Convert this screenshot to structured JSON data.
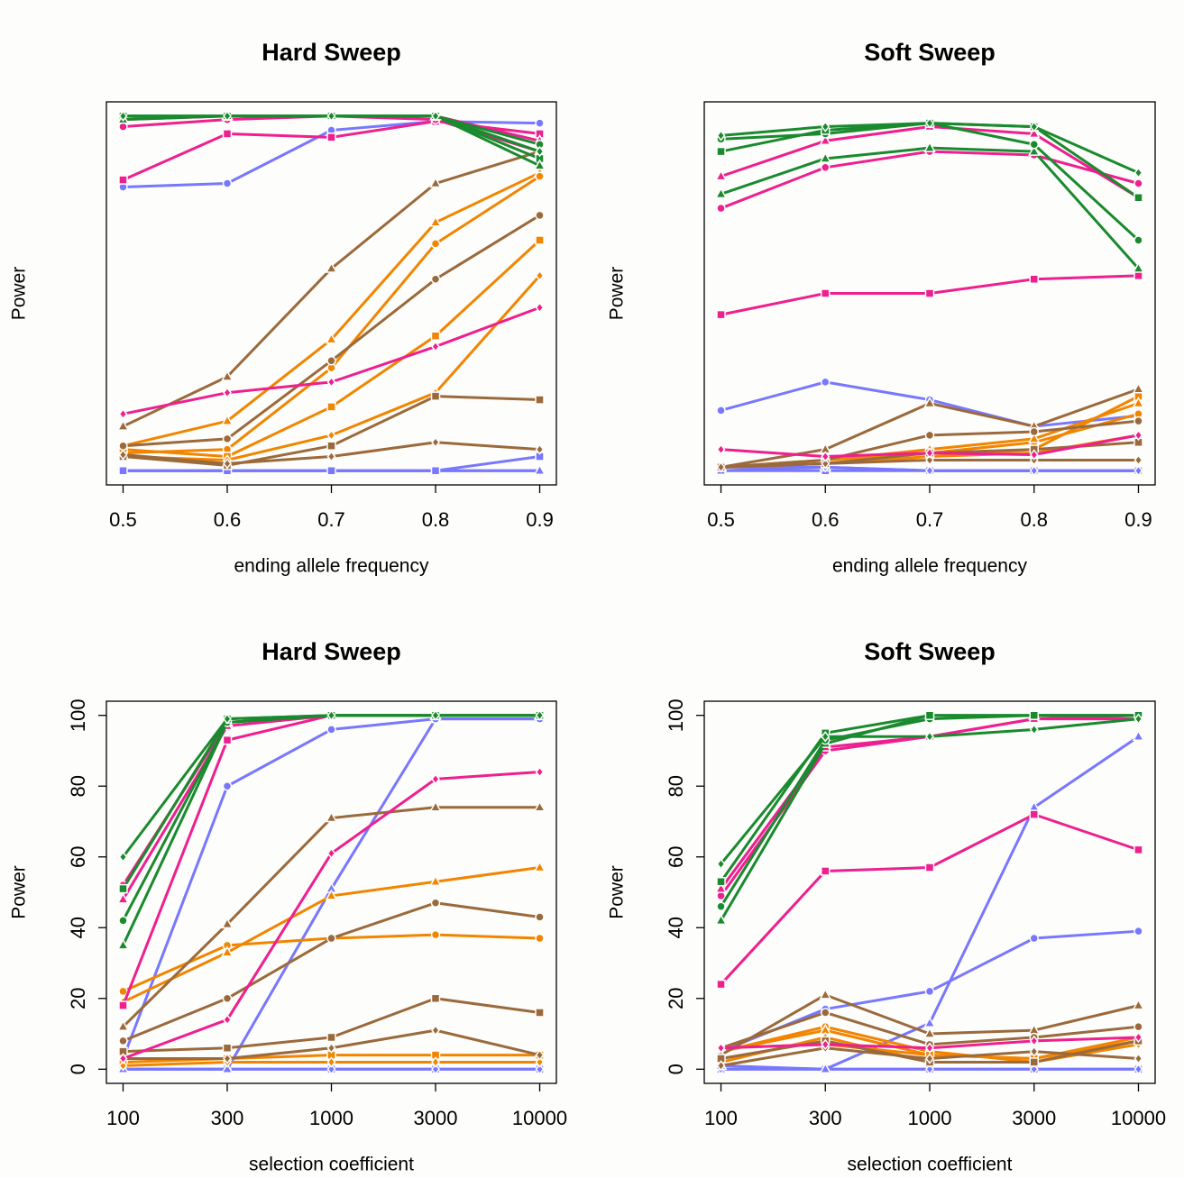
{
  "chart_data": [
    {
      "type": "line",
      "title": "Hard Sweep",
      "xlabel": "ending allele frequency",
      "ylabel": "Power",
      "x": [
        0.5,
        0.6,
        0.7,
        0.8,
        0.9
      ],
      "xlim": [
        0.484,
        0.916
      ],
      "xticks": [
        0.5,
        0.6,
        0.7,
        0.8,
        0.9
      ],
      "ylim": [
        -4,
        104
      ],
      "series": [
        {
          "color": "#7777ff",
          "marker": "diamond",
          "values": [
            0,
            0,
            0,
            0,
            0
          ]
        },
        {
          "color": "#7777ff",
          "marker": "triangle",
          "values": [
            0,
            0,
            0,
            0,
            0
          ]
        },
        {
          "color": "#7777ff",
          "marker": "square",
          "values": [
            0,
            0,
            0,
            0,
            4
          ]
        },
        {
          "color": "#7777ff",
          "marker": "circle",
          "values": [
            80,
            81,
            96,
            98.5,
            98
          ]
        },
        {
          "color": "#f28500",
          "marker": "triangle",
          "values": [
            7,
            14,
            37,
            70,
            84
          ]
        },
        {
          "color": "#f28500",
          "marker": "circle",
          "values": [
            5,
            6,
            29,
            64,
            83
          ]
        },
        {
          "color": "#f28500",
          "marker": "square",
          "values": [
            6,
            4,
            18,
            38,
            65
          ]
        },
        {
          "color": "#f28500",
          "marker": "diamond",
          "values": [
            4,
            3,
            10,
            22,
            55
          ]
        },
        {
          "color": "#9b6a3c",
          "marker": "triangle",
          "values": [
            12.5,
            26.5,
            57,
            81,
            90
          ]
        },
        {
          "color": "#9b6a3c",
          "marker": "circle",
          "values": [
            7,
            9,
            31,
            54,
            72
          ]
        },
        {
          "color": "#9b6a3c",
          "marker": "square",
          "values": [
            4,
            1.5,
            7,
            21,
            20
          ]
        },
        {
          "color": "#9b6a3c",
          "marker": "diamond",
          "values": [
            4.5,
            2,
            4,
            8,
            6
          ]
        },
        {
          "color": "#ee1f8f",
          "marker": "diamond",
          "values": [
            16,
            22,
            25,
            35,
            46
          ]
        },
        {
          "color": "#ee1f8f",
          "marker": "square",
          "values": [
            82,
            95,
            94,
            98.5,
            95
          ]
        },
        {
          "color": "#ee1f8f",
          "marker": "circle",
          "values": [
            97,
            99,
            100,
            99,
            90
          ]
        },
        {
          "color": "#ee1f8f",
          "marker": "triangle",
          "values": [
            99,
            100,
            100,
            100,
            93
          ]
        },
        {
          "color": "#1a8a2e",
          "marker": "circle",
          "values": [
            100,
            100,
            100,
            100,
            92
          ]
        },
        {
          "color": "#1a8a2e",
          "marker": "square",
          "values": [
            100,
            100,
            100,
            100,
            88
          ]
        },
        {
          "color": "#1a8a2e",
          "marker": "triangle",
          "values": [
            99,
            100,
            100,
            100,
            86
          ]
        },
        {
          "color": "#1a8a2e",
          "marker": "diamond",
          "values": [
            100,
            100,
            100,
            100,
            90
          ]
        }
      ]
    },
    {
      "type": "line",
      "title": "Soft Sweep",
      "xlabel": "ending allele frequency",
      "ylabel": "Power",
      "x": [
        0.5,
        0.6,
        0.7,
        0.8,
        0.9
      ],
      "xlim": [
        0.484,
        0.916
      ],
      "xticks": [
        0.5,
        0.6,
        0.7,
        0.8,
        0.9
      ],
      "ylim": [
        -4,
        104
      ],
      "series": [
        {
          "color": "#7777ff",
          "marker": "square",
          "values": [
            0,
            0,
            0,
            0,
            0
          ]
        },
        {
          "color": "#7777ff",
          "marker": "triangle",
          "values": [
            0,
            1,
            0,
            0,
            0
          ]
        },
        {
          "color": "#7777ff",
          "marker": "diamond",
          "values": [
            1,
            1,
            0,
            0,
            0
          ]
        },
        {
          "color": "#7777ff",
          "marker": "circle",
          "values": [
            17,
            25,
            20,
            12.5,
            15.5
          ]
        },
        {
          "color": "#f28500",
          "marker": "circle",
          "values": [
            1,
            3,
            5,
            8,
            16
          ]
        },
        {
          "color": "#f28500",
          "marker": "square",
          "values": [
            1,
            2,
            4,
            6,
            21
          ]
        },
        {
          "color": "#f28500",
          "marker": "triangle",
          "values": [
            1,
            3,
            6,
            9,
            19
          ]
        },
        {
          "color": "#f28500",
          "marker": "diamond",
          "values": [
            1,
            2,
            4,
            5,
            10
          ]
        },
        {
          "color": "#9b6a3c",
          "marker": "triangle",
          "values": [
            1,
            6,
            19,
            12.5,
            23
          ]
        },
        {
          "color": "#9b6a3c",
          "marker": "circle",
          "values": [
            1,
            3,
            10,
            11,
            14
          ]
        },
        {
          "color": "#9b6a3c",
          "marker": "square",
          "values": [
            1,
            2,
            5,
            6,
            8
          ]
        },
        {
          "color": "#9b6a3c",
          "marker": "diamond",
          "values": [
            1,
            2,
            3,
            3,
            3
          ]
        },
        {
          "color": "#ee1f8f",
          "marker": "diamond",
          "values": [
            6,
            4,
            5,
            4.5,
            10
          ]
        },
        {
          "color": "#ee1f8f",
          "marker": "square",
          "values": [
            44,
            50,
            50,
            54,
            55
          ]
        },
        {
          "color": "#ee1f8f",
          "marker": "circle",
          "values": [
            74,
            85.5,
            90,
            89,
            81
          ]
        },
        {
          "color": "#ee1f8f",
          "marker": "triangle",
          "values": [
            83,
            93,
            97,
            95,
            77
          ]
        },
        {
          "color": "#1a8a2e",
          "marker": "triangle",
          "values": [
            78,
            88,
            91,
            90,
            57
          ]
        },
        {
          "color": "#1a8a2e",
          "marker": "circle",
          "values": [
            93.5,
            95,
            98,
            92,
            65
          ]
        },
        {
          "color": "#1a8a2e",
          "marker": "square",
          "values": [
            90,
            96,
            98,
            97,
            77
          ]
        },
        {
          "color": "#1a8a2e",
          "marker": "diamond",
          "values": [
            94.5,
            97,
            98,
            97,
            84
          ]
        }
      ]
    },
    {
      "type": "line",
      "title": "Hard Sweep",
      "xlabel": "selection coefficient",
      "ylabel": "Power",
      "categories": [
        "100",
        "300",
        "1000",
        "3000",
        "10000"
      ],
      "ylim": [
        -4,
        104
      ],
      "yticks": [
        0,
        20,
        40,
        60,
        80,
        100
      ],
      "series": [
        {
          "color": "#7777ff",
          "marker": "square",
          "values": [
            0,
            0,
            0,
            0,
            0
          ]
        },
        {
          "color": "#7777ff",
          "marker": "diamond",
          "values": [
            0,
            0,
            0,
            0,
            0
          ]
        },
        {
          "color": "#7777ff",
          "marker": "triangle",
          "values": [
            0,
            0,
            51,
            99,
            99
          ]
        },
        {
          "color": "#7777ff",
          "marker": "circle",
          "values": [
            3,
            80,
            96,
            99,
            99
          ]
        },
        {
          "color": "#f28500",
          "marker": "square",
          "values": [
            2,
            3,
            4,
            4,
            4
          ]
        },
        {
          "color": "#f28500",
          "marker": "diamond",
          "values": [
            1,
            2,
            2,
            2,
            2
          ]
        },
        {
          "color": "#f28500",
          "marker": "circle",
          "values": [
            22,
            35,
            37,
            38,
            37
          ]
        },
        {
          "color": "#f28500",
          "marker": "triangle",
          "values": [
            19,
            33,
            49,
            53,
            57
          ]
        },
        {
          "color": "#9b6a3c",
          "marker": "triangle",
          "values": [
            12,
            41,
            71,
            74,
            74
          ]
        },
        {
          "color": "#9b6a3c",
          "marker": "circle",
          "values": [
            8,
            20,
            37,
            47,
            43
          ]
        },
        {
          "color": "#9b6a3c",
          "marker": "square",
          "values": [
            5,
            6,
            9,
            20,
            16
          ]
        },
        {
          "color": "#9b6a3c",
          "marker": "diamond",
          "values": [
            3,
            3,
            6,
            11,
            4
          ]
        },
        {
          "color": "#ee1f8f",
          "marker": "diamond",
          "values": [
            3,
            14,
            61,
            82,
            84
          ]
        },
        {
          "color": "#ee1f8f",
          "marker": "square",
          "values": [
            18,
            93,
            100,
            100,
            100
          ]
        },
        {
          "color": "#ee1f8f",
          "marker": "triangle",
          "values": [
            48,
            97,
            100,
            100,
            100
          ]
        },
        {
          "color": "#ee1f8f",
          "marker": "circle",
          "values": [
            52,
            98,
            100,
            100,
            100
          ]
        },
        {
          "color": "#1a8a2e",
          "marker": "triangle",
          "values": [
            35,
            98,
            100,
            100,
            100
          ]
        },
        {
          "color": "#1a8a2e",
          "marker": "circle",
          "values": [
            42,
            98,
            100,
            100,
            100
          ]
        },
        {
          "color": "#1a8a2e",
          "marker": "square",
          "values": [
            51,
            99,
            100,
            100,
            100
          ]
        },
        {
          "color": "#1a8a2e",
          "marker": "diamond",
          "values": [
            60,
            99,
            100,
            100,
            100
          ]
        }
      ]
    },
    {
      "type": "line",
      "title": "Soft Sweep",
      "xlabel": "selection coefficient",
      "ylabel": "Power",
      "categories": [
        "100",
        "300",
        "1000",
        "3000",
        "10000"
      ],
      "ylim": [
        -4,
        104
      ],
      "yticks": [
        0,
        20,
        40,
        60,
        80,
        100
      ],
      "series": [
        {
          "color": "#7777ff",
          "marker": "square",
          "values": [
            0,
            0,
            0,
            0,
            0
          ]
        },
        {
          "color": "#7777ff",
          "marker": "diamond",
          "values": [
            0,
            0,
            0,
            0,
            0
          ]
        },
        {
          "color": "#7777ff",
          "marker": "circle",
          "values": [
            5,
            17,
            22,
            37,
            39
          ]
        },
        {
          "color": "#7777ff",
          "marker": "triangle",
          "values": [
            1,
            0,
            13,
            74,
            94
          ]
        },
        {
          "color": "#f28500",
          "marker": "circle",
          "values": [
            5,
            12,
            5,
            2,
            8
          ]
        },
        {
          "color": "#f28500",
          "marker": "triangle",
          "values": [
            5,
            11,
            4,
            3,
            9
          ]
        },
        {
          "color": "#f28500",
          "marker": "square",
          "values": [
            6,
            7,
            4,
            3,
            8
          ]
        },
        {
          "color": "#f28500",
          "marker": "diamond",
          "values": [
            2,
            9,
            2,
            2,
            7
          ]
        },
        {
          "color": "#9b6a3c",
          "marker": "triangle",
          "values": [
            4,
            21,
            10,
            11,
            18
          ]
        },
        {
          "color": "#9b6a3c",
          "marker": "circle",
          "values": [
            6,
            16,
            7,
            9,
            12
          ]
        },
        {
          "color": "#9b6a3c",
          "marker": "square",
          "values": [
            3,
            8,
            2,
            2,
            8
          ]
        },
        {
          "color": "#9b6a3c",
          "marker": "diamond",
          "values": [
            1,
            6,
            3,
            5,
            3
          ]
        },
        {
          "color": "#ee1f8f",
          "marker": "diamond",
          "values": [
            6,
            7,
            6,
            8,
            9
          ]
        },
        {
          "color": "#ee1f8f",
          "marker": "square",
          "values": [
            24,
            56,
            57,
            72,
            62
          ]
        },
        {
          "color": "#ee1f8f",
          "marker": "circle",
          "values": [
            49,
            90,
            94,
            99,
            99
          ]
        },
        {
          "color": "#ee1f8f",
          "marker": "triangle",
          "values": [
            51,
            91,
            94,
            99,
            100
          ]
        },
        {
          "color": "#1a8a2e",
          "marker": "triangle",
          "values": [
            42,
            92,
            100,
            100,
            100
          ]
        },
        {
          "color": "#1a8a2e",
          "marker": "circle",
          "values": [
            46,
            93,
            99,
            100,
            100
          ]
        },
        {
          "color": "#1a8a2e",
          "marker": "square",
          "values": [
            53,
            95,
            100,
            100,
            100
          ]
        },
        {
          "color": "#1a8a2e",
          "marker": "diamond",
          "values": [
            58,
            94,
            94,
            96,
            99
          ]
        }
      ]
    }
  ]
}
